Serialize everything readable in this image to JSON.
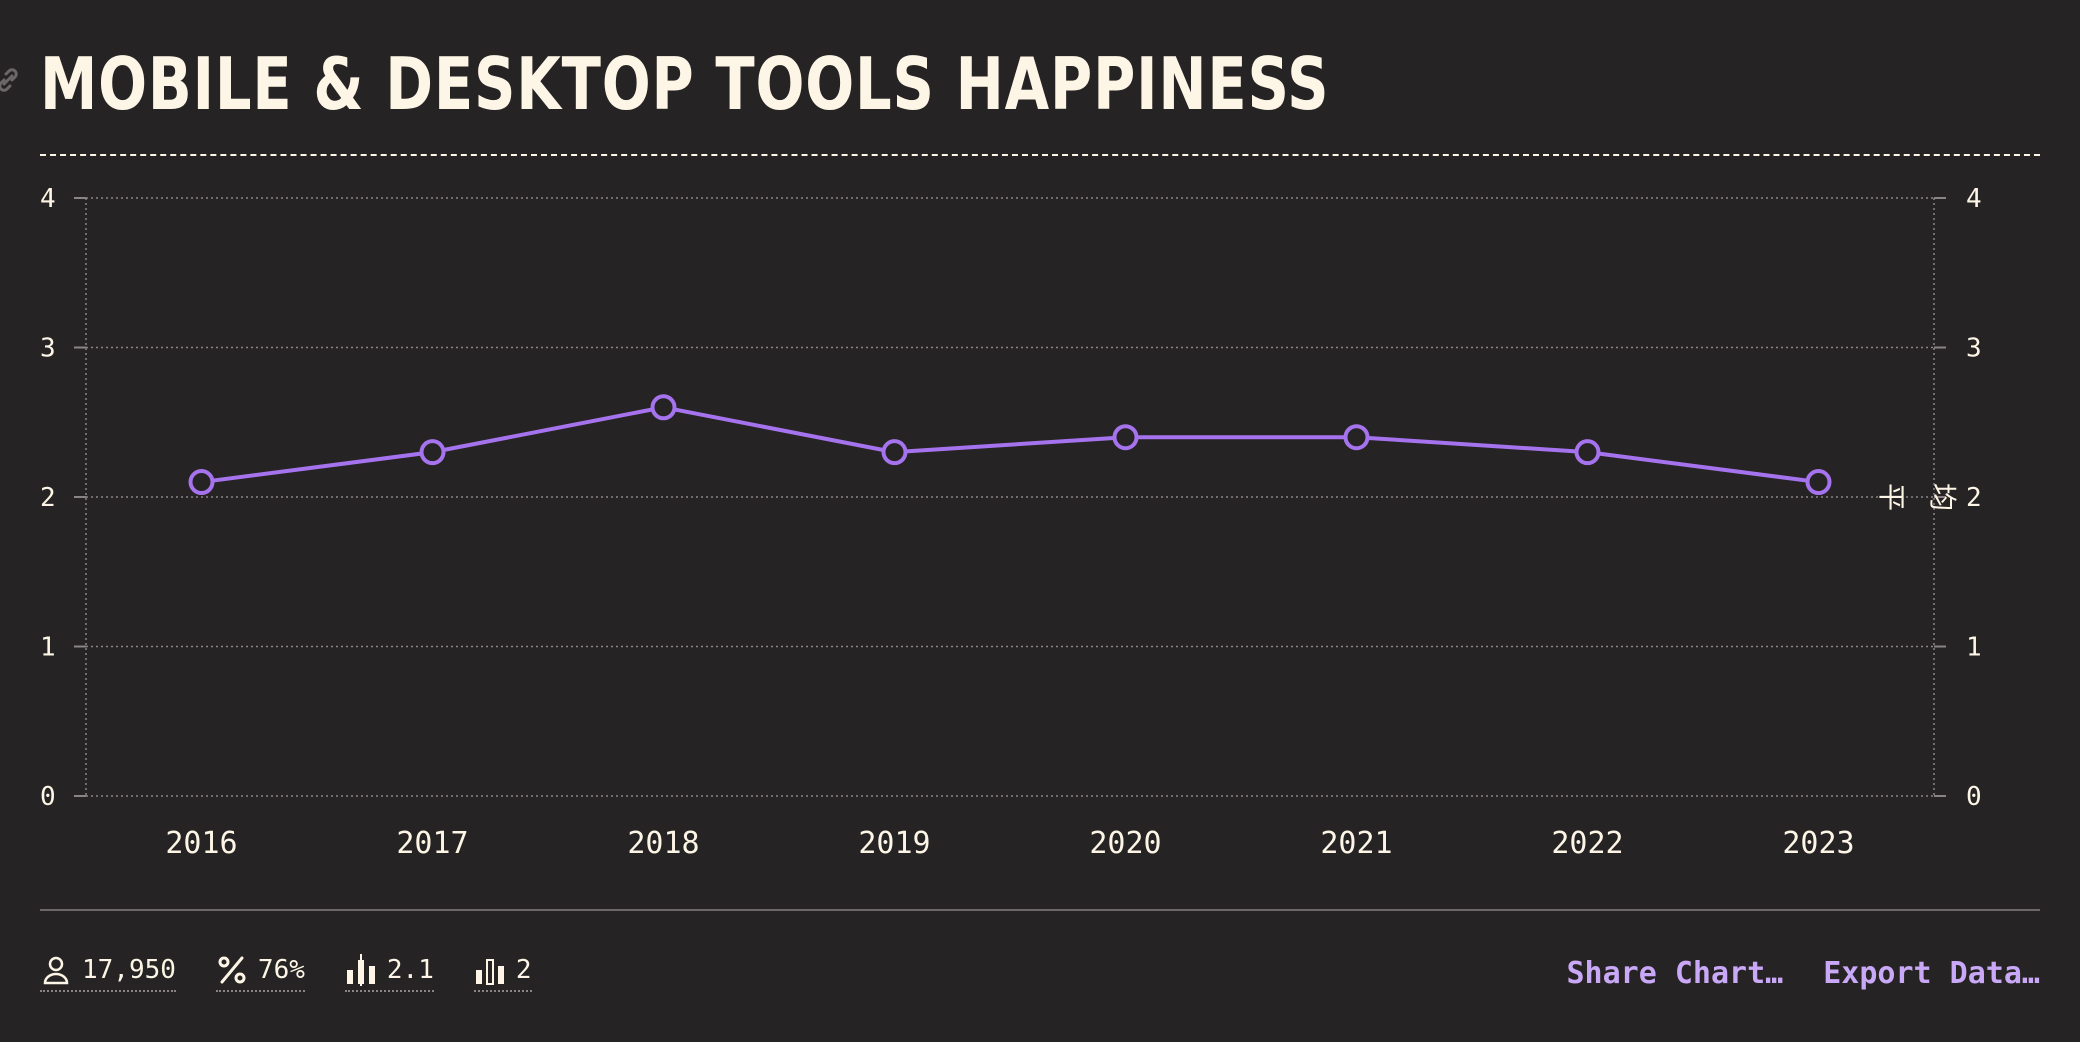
{
  "header": {
    "title": "MOBILE & DESKTOP TOOLS HAPPINESS"
  },
  "icons": {
    "link": "link-icon",
    "respondents": "user-icon",
    "percent": "percent-icon",
    "average": "bar-chart-average-icon",
    "median": "bar-chart-median-icon"
  },
  "colors": {
    "line": "#a673ee",
    "text": "#fdf6e6",
    "background": "#262324",
    "accent": "#c9a8f7"
  },
  "chart_data": {
    "type": "line",
    "title": "MOBILE & DESKTOP TOOLS HAPPINESS",
    "x": [
      "2016",
      "2017",
      "2018",
      "2019",
      "2020",
      "2021",
      "2022",
      "2023"
    ],
    "series": [
      {
        "values": [
          2.1,
          2.3,
          2.6,
          2.3,
          2.4,
          2.4,
          2.3,
          2.1
        ]
      }
    ],
    "ylim": [
      0,
      4
    ],
    "yticks": [
      "0",
      "1",
      "2",
      "3",
      "4"
    ],
    "right_axis": true,
    "grid": true,
    "annotation": {
      "text": "平 均",
      "y": 2
    }
  },
  "footer": {
    "stats": [
      {
        "icon": "user-icon",
        "value": "17,950"
      },
      {
        "icon": "percent-icon",
        "value": "76%"
      },
      {
        "icon": "bar-chart-average-icon",
        "value": "2.1"
      },
      {
        "icon": "bar-chart-median-icon",
        "value": "2"
      }
    ],
    "actions": {
      "share_label": "Share Chart…",
      "export_label": "Export Data…"
    }
  }
}
